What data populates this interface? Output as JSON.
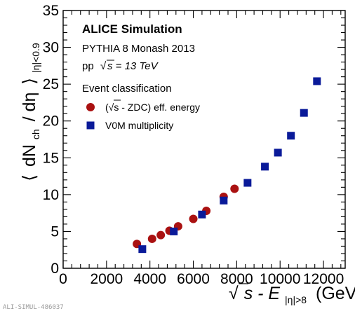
{
  "chart_data": {
    "type": "scatter",
    "xlim": [
      0,
      13000
    ],
    "ylim": [
      0,
      35
    ],
    "x_ticks": [
      0,
      2000,
      4000,
      6000,
      8000,
      10000,
      12000
    ],
    "y_ticks": [
      0,
      5,
      10,
      15,
      20,
      25,
      30,
      35
    ],
    "x_tick_labels": [
      "0",
      "2000",
      "4000",
      "6000",
      "8000",
      "10000",
      "12000"
    ],
    "y_tick_labels": [
      "0",
      "5",
      "10",
      "15",
      "20",
      "25",
      "30",
      "35"
    ],
    "xlabel": {
      "sqrt_symbol": "√",
      "main": "s - E",
      "subscript": "|η|>8",
      "unit": "(GeV)"
    },
    "ylabel": {
      "open": "⟨",
      "main_start": "dN",
      "main_sub": "ch",
      "main_end": "/ dη",
      "close": "⟩",
      "subscript": "|η|<0.9"
    },
    "annotation": {
      "title": "ALICE Simulation",
      "line1": "PYTHIA 8 Monash 2013",
      "line2_prefix": "pp",
      "line2_sqrt": "√",
      "line2_rest": "s = 13 TeV",
      "legend_header": "Event classification"
    },
    "series": [
      {
        "name": "(√s - ZDC) eff. energy",
        "marker": "circle",
        "color": "#aa1111",
        "points": [
          [
            3400,
            3.3
          ],
          [
            4100,
            4.0
          ],
          [
            4500,
            4.5
          ],
          [
            4900,
            5.1
          ],
          [
            5300,
            5.7
          ],
          [
            6000,
            6.7
          ],
          [
            6600,
            7.8
          ],
          [
            7400,
            9.7
          ],
          [
            7900,
            10.8
          ]
        ]
      },
      {
        "name": "V0M multiplicity",
        "marker": "square",
        "color": "#0a1a99",
        "points": [
          [
            3650,
            2.6
          ],
          [
            5100,
            5.0
          ],
          [
            6400,
            7.3
          ],
          [
            7400,
            9.2
          ],
          [
            8500,
            11.6
          ],
          [
            9300,
            13.8
          ],
          [
            9900,
            15.7
          ],
          [
            10500,
            18.0
          ],
          [
            11100,
            21.1
          ],
          [
            11700,
            25.4
          ]
        ]
      }
    ],
    "reference_label": "ALI-SIMUL-486037"
  }
}
